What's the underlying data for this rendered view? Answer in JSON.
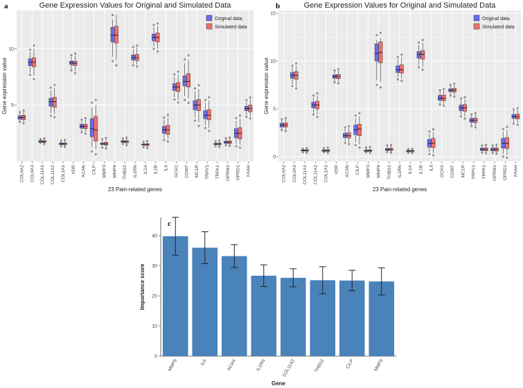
{
  "colors": {
    "panel_bg": "#ebebeb",
    "grid": "#ffffff",
    "original": "#6b6bea",
    "simulated": "#f07070",
    "bar": "#4a82ba"
  },
  "chart_data": [
    {
      "panel_label": "a",
      "type": "boxplot",
      "title": "Gene Expression Values for Original and Simulated Data",
      "xlabel": "23 Pain-related genes",
      "ylabel": "Gene expression value",
      "ylim": [
        0,
        13.4
      ],
      "yticks": [
        5,
        10
      ],
      "legend": {
        "position": "top-right",
        "entries": [
          "Original data",
          "Simulated data"
        ]
      },
      "categories": [
        "COL9A2",
        "COL9A3",
        "COL11A1",
        "COL11A2",
        "COL1A1",
        "VDR",
        "ACAN",
        "CILP",
        "MMP3",
        "MMP9",
        "THBS2",
        "IL1RN",
        "IL1A",
        "IL1B",
        "IL6",
        "GCH1",
        "COMT",
        "MC1R",
        "TRPV1",
        "TRPA1",
        "OPRM1",
        "OPRD1",
        "FAAH"
      ],
      "series": [
        {
          "name": "Original data",
          "boxes": [
            [
              3.6,
              3.75,
              3.9,
              4.05,
              4.3
            ],
            [
              7.9,
              8.5,
              8.8,
              9.1,
              9.7
            ],
            [
              1.7,
              1.7,
              1.75,
              1.85,
              1.95
            ],
            [
              4.3,
              4.9,
              5.3,
              5.6,
              6.3
            ],
            [
              1.4,
              1.5,
              1.55,
              1.65,
              1.8
            ],
            [
              8.2,
              8.6,
              8.75,
              8.9,
              9.3
            ],
            [
              2.7,
              2.95,
              3.1,
              3.3,
              3.6
            ],
            [
              1.3,
              2.2,
              2.9,
              3.8,
              4.8
            ],
            [
              1.3,
              1.5,
              1.55,
              1.65,
              1.9
            ],
            [
              9.3,
              10.6,
              11.2,
              11.9,
              12.6
            ],
            [
              1.6,
              1.7,
              1.75,
              1.85,
              2.0
            ],
            [
              8.7,
              9.0,
              9.2,
              9.45,
              10.0
            ],
            [
              1.3,
              1.45,
              1.5,
              1.55,
              1.7
            ],
            [
              10.2,
              10.7,
              11.0,
              11.3,
              11.9
            ],
            [
              2.1,
              2.5,
              2.8,
              3.1,
              3.7
            ],
            [
              5.7,
              6.3,
              6.6,
              6.9,
              7.5
            ],
            [
              5.8,
              6.7,
              7.1,
              7.6,
              8.7
            ],
            [
              3.9,
              4.6,
              5.0,
              5.4,
              6.2
            ],
            [
              3.2,
              3.8,
              4.1,
              4.5,
              5.2
            ],
            [
              1.4,
              1.5,
              1.55,
              1.6,
              1.75
            ],
            [
              1.5,
              1.6,
              1.7,
              1.8,
              2.0
            ],
            [
              1.6,
              2.1,
              2.5,
              2.9,
              3.6
            ],
            [
              4.1,
              4.5,
              4.7,
              4.9,
              5.3
            ]
          ]
        },
        {
          "name": "Simulated data",
          "boxes": [
            [
              3.5,
              3.7,
              3.9,
              4.1,
              4.4
            ],
            [
              7.6,
              8.4,
              8.8,
              9.2,
              10.0
            ],
            [
              1.6,
              1.68,
              1.75,
              1.85,
              2.0
            ],
            [
              4.2,
              4.8,
              5.3,
              5.7,
              6.5
            ],
            [
              1.35,
              1.48,
              1.55,
              1.65,
              1.85
            ],
            [
              8.0,
              8.5,
              8.7,
              8.9,
              9.4
            ],
            [
              2.6,
              2.9,
              3.1,
              3.3,
              3.7
            ],
            [
              1.1,
              1.8,
              2.8,
              4.0,
              5.0
            ],
            [
              1.25,
              1.45,
              1.55,
              1.7,
              2.0
            ],
            [
              9.0,
              10.5,
              11.2,
              12.0,
              13.0
            ],
            [
              1.5,
              1.65,
              1.75,
              1.85,
              2.05
            ],
            [
              8.6,
              8.95,
              9.2,
              9.5,
              10.1
            ],
            [
              1.25,
              1.4,
              1.5,
              1.58,
              1.75
            ],
            [
              10.0,
              10.6,
              11.0,
              11.4,
              12.0
            ],
            [
              2.0,
              2.4,
              2.8,
              3.2,
              3.9
            ],
            [
              5.5,
              6.2,
              6.6,
              7.0,
              7.7
            ],
            [
              5.6,
              6.6,
              7.1,
              7.8,
              9.0
            ],
            [
              3.5,
              4.5,
              5.0,
              5.5,
              6.4
            ],
            [
              3.0,
              3.7,
              4.1,
              4.6,
              5.4
            ],
            [
              1.35,
              1.48,
              1.55,
              1.62,
              1.8
            ],
            [
              1.45,
              1.58,
              1.7,
              1.82,
              2.05
            ],
            [
              1.5,
              2.0,
              2.5,
              3.0,
              3.8
            ],
            [
              4.0,
              4.4,
              4.7,
              5.0,
              5.5
            ]
          ]
        }
      ]
    },
    {
      "panel_label": "b",
      "type": "boxplot",
      "title": "Gene Expression Values for Original and Simulated Data",
      "xlabel": "23 Pain-related genes",
      "ylabel": "Gene expression value",
      "ylim": [
        -0.5,
        15.3
      ],
      "yticks": [
        0,
        5,
        10,
        15
      ],
      "legend": {
        "position": "top-right",
        "entries": [
          "Original data",
          "Simulated data"
        ]
      },
      "categories": [
        "COL9A2",
        "COL9A3",
        "COL11A1",
        "COL11A2",
        "COL1A1",
        "VDR",
        "ACAN",
        "CILP",
        "MMP3",
        "MMP9",
        "THBS2",
        "IL1RN",
        "IL1A",
        "IL1B",
        "IL6",
        "GCH1",
        "COMT",
        "MC1R",
        "TRPV1",
        "TRPA1",
        "OPRM1",
        "OPRD1",
        "FAAH"
      ],
      "series": [
        {
          "name": "Original data",
          "boxes": [
            [
              2.9,
              3.1,
              3.3,
              3.5,
              3.8
            ],
            [
              7.6,
              8.2,
              8.5,
              8.8,
              9.3
            ],
            [
              0.5,
              0.6,
              0.65,
              0.7,
              0.8
            ],
            [
              4.6,
              5.1,
              5.4,
              5.7,
              6.2
            ],
            [
              0.5,
              0.55,
              0.65,
              0.7,
              0.85
            ],
            [
              7.9,
              8.2,
              8.4,
              8.55,
              8.9
            ],
            [
              1.6,
              2.0,
              2.2,
              2.45,
              2.9
            ],
            [
              1.5,
              2.3,
              2.8,
              3.3,
              4.0
            ],
            [
              0.5,
              0.55,
              0.6,
              0.7,
              0.9
            ],
            [
              8.0,
              10.0,
              10.8,
              11.8,
              12.2
            ],
            [
              0.55,
              0.65,
              0.75,
              0.85,
              1.1
            ],
            [
              8.3,
              8.8,
              9.1,
              9.5,
              10.2
            ],
            [
              0.45,
              0.52,
              0.6,
              0.65,
              0.75
            ],
            [
              9.6,
              10.3,
              10.7,
              11.0,
              11.7
            ],
            [
              0.5,
              1.0,
              1.4,
              1.8,
              2.4
            ],
            [
              5.6,
              5.9,
              6.1,
              6.4,
              6.8
            ],
            [
              6.5,
              6.8,
              6.95,
              7.1,
              7.4
            ],
            [
              4.4,
              4.8,
              5.1,
              5.4,
              5.9
            ],
            [
              3.3,
              3.6,
              3.8,
              4.0,
              4.3
            ],
            [
              0.5,
              0.65,
              0.75,
              0.9,
              1.1
            ],
            [
              0.45,
              0.6,
              0.75,
              0.9,
              1.1
            ],
            [
              0.3,
              0.9,
              1.4,
              1.9,
              2.6
            ],
            [
              3.6,
              4.0,
              4.2,
              4.4,
              4.8
            ]
          ]
        },
        {
          "name": "Simulated data",
          "boxes": [
            [
              2.8,
              3.1,
              3.3,
              3.55,
              3.9
            ],
            [
              7.4,
              8.1,
              8.5,
              8.9,
              9.5
            ],
            [
              0.45,
              0.58,
              0.65,
              0.72,
              0.85
            ],
            [
              4.4,
              5.0,
              5.4,
              5.8,
              6.4
            ],
            [
              0.45,
              0.55,
              0.65,
              0.72,
              0.9
            ],
            [
              7.8,
              8.15,
              8.4,
              8.6,
              9.0
            ],
            [
              1.5,
              1.95,
              2.2,
              2.5,
              3.0
            ],
            [
              1.3,
              2.2,
              2.9,
              3.4,
              4.2
            ],
            [
              0.45,
              0.55,
              0.62,
              0.72,
              0.95
            ],
            [
              7.8,
              9.8,
              10.9,
              12.0,
              12.4
            ],
            [
              0.5,
              0.65,
              0.75,
              0.88,
              1.15
            ],
            [
              8.2,
              8.75,
              9.1,
              9.6,
              10.4
            ],
            [
              0.42,
              0.5,
              0.6,
              0.66,
              0.78
            ],
            [
              9.4,
              10.2,
              10.7,
              11.1,
              11.9
            ],
            [
              0.4,
              0.95,
              1.4,
              1.9,
              2.6
            ],
            [
              5.5,
              5.85,
              6.1,
              6.45,
              6.9
            ],
            [
              6.4,
              6.75,
              6.95,
              7.15,
              7.5
            ],
            [
              4.2,
              4.75,
              5.1,
              5.45,
              6.0
            ],
            [
              3.2,
              3.55,
              3.8,
              4.05,
              4.4
            ],
            [
              0.45,
              0.62,
              0.75,
              0.92,
              1.15
            ],
            [
              0.4,
              0.58,
              0.75,
              0.92,
              1.15
            ],
            [
              0.2,
              0.85,
              1.4,
              2.0,
              2.8
            ],
            [
              3.5,
              3.95,
              4.2,
              4.45,
              4.9
            ]
          ]
        }
      ]
    },
    {
      "panel_label": "c",
      "type": "bar",
      "xlabel": "Gene",
      "ylabel": "Importance score",
      "ylim": [
        0,
        46
      ],
      "yticks": [
        0,
        10,
        20,
        30,
        40
      ],
      "categories": [
        "MMP9",
        "IL6",
        "ACAN",
        "IL1RN",
        "COL11A2",
        "THBS2",
        "CILP",
        "MMP3"
      ],
      "values": [
        39.8,
        36.0,
        33.2,
        26.7,
        26.0,
        25.2,
        25.1,
        24.8
      ],
      "errors": [
        6.3,
        5.3,
        3.8,
        3.6,
        3.0,
        4.5,
        3.4,
        4.5
      ]
    }
  ]
}
